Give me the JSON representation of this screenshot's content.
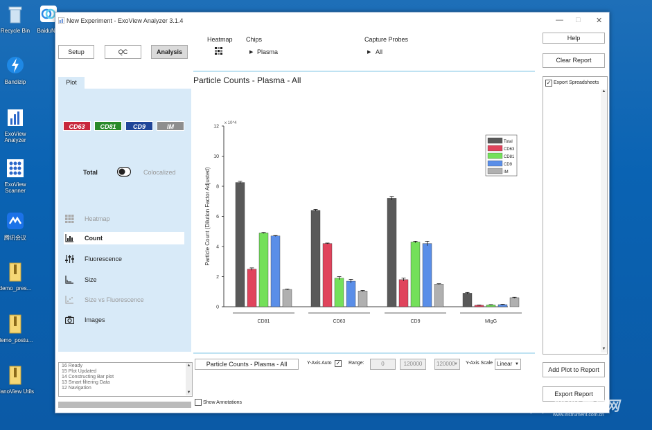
{
  "desktop_icons": [
    {
      "label": "Recycle Bin",
      "name": "recycle-bin-icon"
    },
    {
      "label": "BaiduNet",
      "name": "baidunet-icon"
    },
    {
      "label": "Bandizip",
      "name": "bandizip-icon"
    },
    {
      "label": "ExoView Analyzer",
      "name": "exoview-analyzer-icon"
    },
    {
      "label": "ExoView Scanner",
      "name": "exoview-scanner-icon"
    },
    {
      "label": "腾讯会议",
      "name": "tencent-meeting-icon"
    },
    {
      "label": "demo_pres...",
      "name": "demo-pres-file-icon"
    },
    {
      "label": "demo_postu...",
      "name": "demo-postu-file-icon"
    },
    {
      "label": "NanoView Utils",
      "name": "nanoview-utils-icon"
    }
  ],
  "window": {
    "title": "New Experiment - ExoView Analyzer 3.1.4",
    "minimize": "—",
    "maximize": "□",
    "close": "✕"
  },
  "top_tabs": {
    "setup": "Setup",
    "qc": "QC",
    "analysis": "Analysis"
  },
  "selectors": {
    "heatmap": "Heatmap",
    "chips_label": "Chips",
    "chips_value": "Plasma",
    "probes_label": "Capture Probes",
    "probes_value": "All"
  },
  "plot_tab": "Plot",
  "probe_tags": [
    {
      "label": "CD63",
      "color": "#c8283c"
    },
    {
      "label": "CD81",
      "color": "#2a8a2a"
    },
    {
      "label": "CD9",
      "color": "#1f4598"
    },
    {
      "label": "IM",
      "color": "#8e8e8e"
    }
  ],
  "toggle": {
    "left": "Total",
    "right": "Colocalized"
  },
  "plot_menu": [
    {
      "label": "Heatmap",
      "icon": "grid-icon",
      "state": "disabled"
    },
    {
      "label": "Count",
      "icon": "bar-chart-icon",
      "state": "active"
    },
    {
      "label": "Fluorescence",
      "icon": "sliders-icon",
      "state": "normal"
    },
    {
      "label": "Size",
      "icon": "size-axis-icon",
      "state": "normal"
    },
    {
      "label": "Size vs Fluorescence",
      "icon": "scatter-icon",
      "state": "disabled"
    },
    {
      "label": "Images",
      "icon": "camera-icon",
      "state": "normal"
    }
  ],
  "log_lines": [
    "16 Ready",
    "15 Plot Updated",
    "14 Constructing Bar plot",
    "13 Smart filtering Data",
    "12 Navigation"
  ],
  "plot_title": "Particle Counts - Plasma - All",
  "bottom": {
    "title_input": "Particle Counts - Plasma - All",
    "yaxis_auto": "Y-Axis Auto",
    "range": "Range:",
    "range_min": "0",
    "range_max": "120000",
    "range_sel": "120000",
    "yscale": "Y-Axis Scale",
    "yscale_val": "Linear",
    "show_annotations": "Show Annotations"
  },
  "right": {
    "help": "Help",
    "clear": "Clear Report",
    "export_sheets": "Export Spreadsheets",
    "add_plot": "Add Plot to Report",
    "export_report": "Export Report"
  },
  "watermark": {
    "text": "仪器信息网",
    "url": "www.instrument.com.cn"
  },
  "chart_data": {
    "type": "bar",
    "categories": [
      "CD81",
      "CD63",
      "CD9",
      "MIgG"
    ],
    "series": [
      {
        "name": "Total",
        "color": "#595959",
        "values": [
          8.25,
          6.4,
          7.2,
          0.9
        ],
        "err": [
          0.08,
          0.06,
          0.12,
          0.05
        ]
      },
      {
        "name": "CD63",
        "color": "#e0445c",
        "values": [
          2.5,
          4.2,
          1.8,
          0.1
        ],
        "err": [
          0.08,
          0.03,
          0.1,
          0.02
        ]
      },
      {
        "name": "CD81",
        "color": "#74e05a",
        "values": [
          4.9,
          1.9,
          4.3,
          0.12
        ],
        "err": [
          0.03,
          0.1,
          0.05,
          0.02
        ]
      },
      {
        "name": "CD9",
        "color": "#5a8ee8",
        "values": [
          4.7,
          1.7,
          4.2,
          0.14
        ],
        "err": [
          0.03,
          0.12,
          0.15,
          0.02
        ]
      },
      {
        "name": "IM",
        "color": "#b0b0b0",
        "values": [
          1.15,
          1.05,
          1.5,
          0.6
        ],
        "err": [
          0.03,
          0.03,
          0.03,
          0.03
        ]
      }
    ],
    "ylabel": "Particle Count (Dilution Factor Adjusted)",
    "yexp": "x 10^4",
    "ylim": [
      0,
      12
    ],
    "yticks": [
      0,
      2,
      4,
      6,
      8,
      10,
      12
    ],
    "legend": "top-right",
    "grid": false
  }
}
